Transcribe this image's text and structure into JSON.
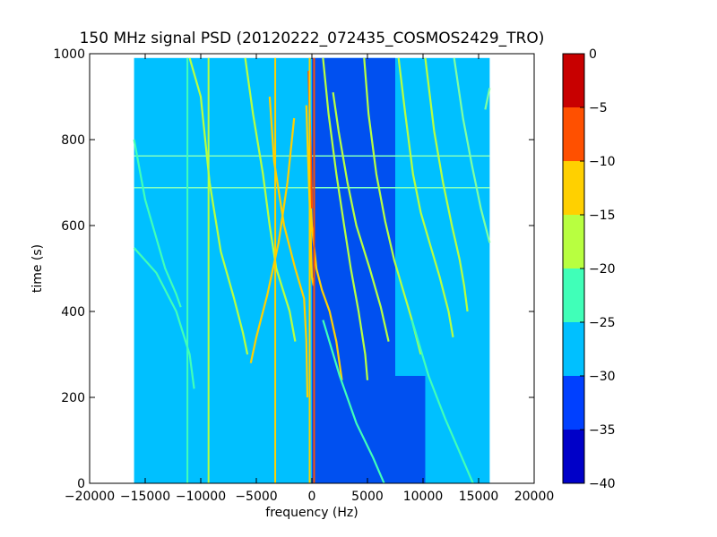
{
  "chart_data": {
    "type": "heatmap",
    "title": "150 MHz signal PSD (20120222_072435_COSMOS2429_TRO)",
    "xlabel": "frequency (Hz)",
    "ylabel": "time (s)",
    "xlim": [
      -20000,
      20000
    ],
    "ylim": [
      0,
      1000
    ],
    "xticks": [
      {
        "value": -20000,
        "label": "−20000"
      },
      {
        "value": -15000,
        "label": "−15000"
      },
      {
        "value": -10000,
        "label": "−10000"
      },
      {
        "value": -5000,
        "label": "−5000"
      },
      {
        "value": 0,
        "label": "0"
      },
      {
        "value": 5000,
        "label": "5000"
      },
      {
        "value": 10000,
        "label": "10000"
      },
      {
        "value": 15000,
        "label": "15000"
      },
      {
        "value": 20000,
        "label": "20000"
      }
    ],
    "yticks": [
      {
        "value": 0,
        "label": "0"
      },
      {
        "value": 200,
        "label": "200"
      },
      {
        "value": 400,
        "label": "400"
      },
      {
        "value": 600,
        "label": "600"
      },
      {
        "value": 800,
        "label": "800"
      },
      {
        "value": 1000,
        "label": "1000"
      }
    ],
    "data_extent": {
      "freq": [
        -16000,
        16000
      ],
      "time": [
        0,
        990
      ]
    },
    "colorbar": {
      "range": [
        -40,
        0
      ],
      "bands": [
        {
          "from": -40,
          "to": -35,
          "color": "#0000c8"
        },
        {
          "from": -35,
          "to": -30,
          "color": "#0040ff"
        },
        {
          "from": -30,
          "to": -25,
          "color": "#00c0ff"
        },
        {
          "from": -25,
          "to": -20,
          "color": "#40ffb8"
        },
        {
          "from": -20,
          "to": -15,
          "color": "#b8ff40"
        },
        {
          "from": -15,
          "to": -10,
          "color": "#ffd000"
        },
        {
          "from": -10,
          "to": -5,
          "color": "#ff5000"
        },
        {
          "from": -5,
          "to": 0,
          "color": "#c80000"
        }
      ],
      "ticks": [
        {
          "value": 0,
          "label": "0"
        },
        {
          "value": -5,
          "label": "−5"
        },
        {
          "value": -10,
          "label": "−10"
        },
        {
          "value": -15,
          "label": "−15"
        },
        {
          "value": -20,
          "label": "−20"
        },
        {
          "value": -25,
          "label": "−25"
        },
        {
          "value": -30,
          "label": "−30"
        },
        {
          "value": -35,
          "label": "−35"
        },
        {
          "value": -40,
          "label": "−40"
        }
      ]
    },
    "background": {
      "value": -27.5,
      "color": "#00c0ff"
    },
    "regions": [
      {
        "freq_range": [
          0,
          7500
        ],
        "time_range": [
          0,
          990
        ],
        "value": -32,
        "color": "#0050f0"
      },
      {
        "freq_range": [
          7500,
          10200
        ],
        "time_range": [
          0,
          250
        ],
        "value": -32,
        "color": "#0050f0"
      }
    ],
    "lines": [
      {
        "name": "trace-1",
        "value": -22,
        "color": "#40ffb8",
        "points": [
          [
            -16000,
            548
          ],
          [
            -14000,
            490
          ],
          [
            -12200,
            400
          ],
          [
            -11000,
            300
          ],
          [
            -10600,
            220
          ]
        ]
      },
      {
        "name": "trace-2",
        "value": -22,
        "color": "#40ffb8",
        "points": [
          [
            -16000,
            800
          ],
          [
            -15000,
            660
          ],
          [
            -13200,
            500
          ],
          [
            -12200,
            440
          ],
          [
            -11800,
            410
          ]
        ]
      },
      {
        "name": "trace-3",
        "value": -18,
        "color": "#b8ff40",
        "points": [
          [
            -11000,
            990
          ],
          [
            -10000,
            900
          ],
          [
            -9200,
            700
          ],
          [
            -8200,
            540
          ],
          [
            -7000,
            430
          ],
          [
            -6200,
            350
          ],
          [
            -5800,
            300
          ]
        ]
      },
      {
        "name": "trace-4",
        "value": -18,
        "color": "#b8ff40",
        "points": [
          [
            -6000,
            990
          ],
          [
            -5300,
            860
          ],
          [
            -4400,
            720
          ],
          [
            -3800,
            600
          ],
          [
            -3200,
            500
          ],
          [
            -2000,
            400
          ],
          [
            -1500,
            330
          ]
        ]
      },
      {
        "name": "trace-5",
        "value": -12,
        "color": "#ffd000",
        "points": [
          [
            -3800,
            900
          ],
          [
            -3400,
            750
          ],
          [
            -2500,
            600
          ],
          [
            -1500,
            500
          ],
          [
            -700,
            430
          ],
          [
            -500,
            330
          ],
          [
            -400,
            200
          ]
        ]
      },
      {
        "name": "trace-6",
        "value": -12,
        "color": "#ffd000",
        "points": [
          [
            -1600,
            850
          ],
          [
            -2200,
            700
          ],
          [
            -3000,
            560
          ],
          [
            -4000,
            440
          ],
          [
            -5000,
            340
          ],
          [
            -5500,
            280
          ]
        ]
      },
      {
        "name": "trace-7",
        "value": -12,
        "color": "#ffd000",
        "points": [
          [
            -300,
            780
          ],
          [
            0,
            600
          ],
          [
            400,
            500
          ],
          [
            900,
            450
          ],
          [
            1600,
            400
          ],
          [
            2200,
            330
          ],
          [
            2700,
            240
          ]
        ]
      },
      {
        "name": "trace-8",
        "value": -8,
        "color": "#ff5000",
        "points": [
          [
            -300,
            960
          ],
          [
            -200,
            860
          ],
          [
            -100,
            760
          ],
          [
            -30,
            690
          ],
          [
            0,
            640
          ]
        ]
      },
      {
        "name": "trace-9",
        "value": -12,
        "color": "#ffd000",
        "points": [
          [
            -500,
            880
          ],
          [
            -400,
            800
          ],
          [
            -200,
            650
          ],
          [
            0,
            480
          ],
          [
            150,
            460
          ]
        ]
      },
      {
        "name": "trace-10",
        "value": -18,
        "color": "#b8ff40",
        "points": [
          [
            1000,
            990
          ],
          [
            1500,
            860
          ],
          [
            2200,
            720
          ],
          [
            2900,
            600
          ],
          [
            3500,
            500
          ],
          [
            4200,
            400
          ],
          [
            4800,
            300
          ],
          [
            5000,
            240
          ]
        ]
      },
      {
        "name": "trace-11",
        "value": -18,
        "color": "#b8ff40",
        "points": [
          [
            1900,
            910
          ],
          [
            2400,
            820
          ],
          [
            3200,
            700
          ],
          [
            4000,
            600
          ],
          [
            5200,
            500
          ],
          [
            6200,
            410
          ],
          [
            6900,
            330
          ]
        ]
      },
      {
        "name": "trace-12",
        "value": -18,
        "color": "#b8ff40",
        "points": [
          [
            4700,
            990
          ],
          [
            5100,
            860
          ],
          [
            5800,
            720
          ],
          [
            6600,
            610
          ],
          [
            7400,
            520
          ],
          [
            8200,
            450
          ],
          [
            9000,
            380
          ],
          [
            9800,
            300
          ]
        ]
      },
      {
        "name": "trace-13",
        "value": -18,
        "color": "#b8ff40",
        "points": [
          [
            7800,
            990
          ],
          [
            8400,
            860
          ],
          [
            9100,
            720
          ],
          [
            9800,
            630
          ],
          [
            10700,
            550
          ],
          [
            11500,
            480
          ],
          [
            12300,
            400
          ],
          [
            12700,
            340
          ]
        ]
      },
      {
        "name": "trace-14",
        "value": -18,
        "color": "#b8ff40",
        "points": [
          [
            10200,
            990
          ],
          [
            11000,
            820
          ],
          [
            11800,
            700
          ],
          [
            12600,
            600
          ],
          [
            13300,
            520
          ],
          [
            13700,
            460
          ],
          [
            14000,
            400
          ]
        ]
      },
      {
        "name": "trace-15",
        "value": -20,
        "color": "#80ffa0",
        "points": [
          [
            12800,
            990
          ],
          [
            13600,
            850
          ],
          [
            14400,
            740
          ],
          [
            15200,
            640
          ],
          [
            16000,
            560
          ]
        ]
      },
      {
        "name": "trace-16",
        "value": -20,
        "color": "#80ffa0",
        "points": [
          [
            16000,
            920
          ],
          [
            15600,
            870
          ]
        ]
      },
      {
        "name": "trace-17",
        "value": -24,
        "color": "#40ffb8",
        "points": [
          [
            1000,
            380
          ],
          [
            2500,
            250
          ],
          [
            4000,
            140
          ],
          [
            5500,
            60
          ],
          [
            6500,
            0
          ]
        ]
      },
      {
        "name": "trace-18",
        "value": -24,
        "color": "#40ffb8",
        "points": [
          [
            9000,
            380
          ],
          [
            10500,
            250
          ],
          [
            12000,
            150
          ],
          [
            13500,
            60
          ],
          [
            14500,
            0
          ]
        ]
      }
    ],
    "vertical_lines": [
      {
        "freq": -11200,
        "value": -22,
        "color": "#40ffb8"
      },
      {
        "freq": -9300,
        "value": -18,
        "color": "#b8ff40"
      },
      {
        "freq": -3300,
        "value": -15,
        "color": "#ffd000"
      },
      {
        "freq": -200,
        "value": -12,
        "color": "#ffd000"
      },
      {
        "freq": 200,
        "value": -5,
        "color": "#ff5000"
      }
    ],
    "horizontal_lines": [
      {
        "time": 762,
        "value": -22,
        "color": "#80ffc0"
      },
      {
        "time": 688,
        "value": -22,
        "color": "#80ffc0"
      }
    ]
  }
}
